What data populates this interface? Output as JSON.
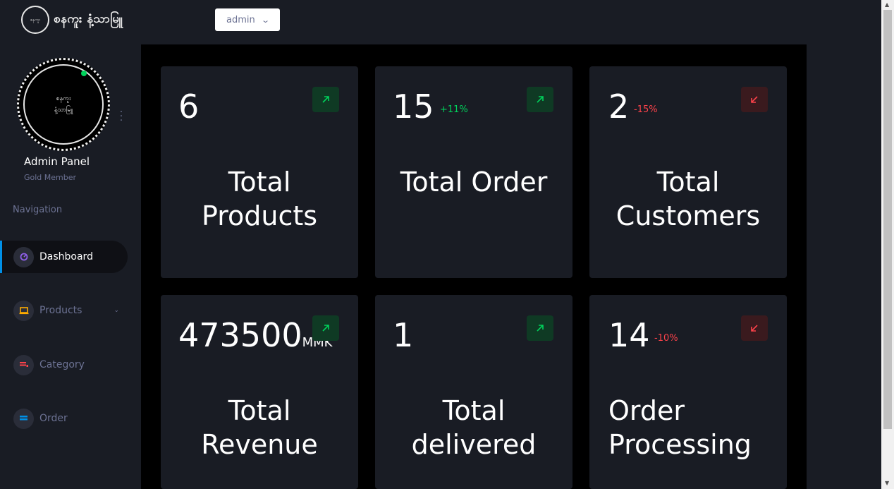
{
  "brand": {
    "name": "စနကူး နံ့သာမြူ",
    "logo_text": "စနကူး"
  },
  "header": {
    "user_dropdown": "admin"
  },
  "sidebar": {
    "profile_name": "Admin Panel",
    "profile_sub": "Gold Member",
    "avatar_line1": "စနကူး",
    "avatar_line2": "နံ့သာမြူ",
    "nav_title": "Navigation",
    "items": [
      {
        "label": "Dashboard",
        "icon": "speedometer-icon",
        "color": "#8f5fe8"
      },
      {
        "label": "Products",
        "icon": "laptop-icon",
        "color": "#ffab00"
      },
      {
        "label": "Category",
        "icon": "playlist-icon",
        "color": "#fc424a"
      },
      {
        "label": "Order",
        "icon": "chart-icon",
        "color": "#0090e7"
      }
    ]
  },
  "cards": [
    {
      "value": "6",
      "unit": "",
      "change": "",
      "trend": "up",
      "label1": "Total",
      "label2": "Products"
    },
    {
      "value": "15",
      "unit": "",
      "change": "+11%",
      "trend": "up",
      "label1": "Total Order",
      "label2": ""
    },
    {
      "value": "2",
      "unit": "",
      "change": "-15%",
      "trend": "down",
      "label1": "Total",
      "label2": "Customers"
    },
    {
      "value": "473500",
      "unit": "MMK",
      "change": "",
      "trend": "up",
      "label1": "Total",
      "label2": "Revenue"
    },
    {
      "value": "1",
      "unit": "",
      "change": "",
      "trend": "up",
      "label1": "Total",
      "label2": "delivered"
    },
    {
      "value": "14",
      "unit": "",
      "change": "-10%",
      "trend": "down",
      "label1": "Order",
      "label2": "Processing"
    }
  ],
  "colors": {
    "up": "#00d25b",
    "down": "#fc424a",
    "accent": "#0090e7"
  }
}
